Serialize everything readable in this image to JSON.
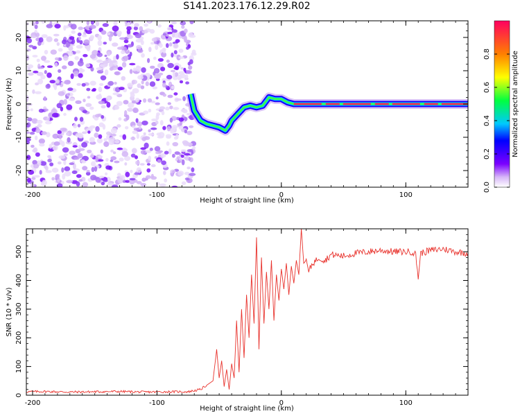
{
  "title": "S141.2023.176.12.29.R02",
  "chart_data": [
    {
      "type": "heatmap",
      "title": "S141.2023.176.12.29.R02",
      "xlabel": "Height of straight line (km)",
      "ylabel": "Frequency (Hz)",
      "xlim": [
        -205,
        150
      ],
      "ylim": [
        -25,
        25
      ],
      "xticks": [
        -200,
        -100,
        0,
        100
      ],
      "yticks": [
        -20,
        -10,
        0,
        10,
        20
      ],
      "colorbar": {
        "label": "Normalized spectral amplitude",
        "range": [
          0,
          1
        ],
        "ticks": [
          0.0,
          0.2,
          0.4,
          0.6,
          0.8
        ],
        "colormap": [
          "#e8d8f8",
          "#7b00ff",
          "#0000ff",
          "#00c8ff",
          "#00ff40",
          "#ffff00",
          "#ff8000",
          "#ff0040"
        ]
      },
      "noise_region_x": [
        -205,
        -70
      ],
      "tone_trace": {
        "x": [
          -73,
          -70,
          -65,
          -60,
          -55,
          -50,
          -45,
          -42,
          -40,
          -35,
          -30,
          -25,
          -20,
          -15,
          -10,
          -5,
          0,
          5,
          10,
          20,
          40,
          60,
          80,
          100,
          120,
          150
        ],
        "frequency": [
          3,
          -2,
          -5,
          -6,
          -6.5,
          -7,
          -8,
          -6.5,
          -5,
          -3,
          -1,
          -0.5,
          -1,
          -0.5,
          2,
          1.5,
          1.5,
          0.5,
          0,
          0,
          0,
          0,
          0,
          0,
          0,
          0
        ]
      },
      "grid": false
    },
    {
      "type": "line",
      "xlabel": "Height of straight line (km)",
      "ylabel": "SNR (10 * v/v)",
      "xlim": [
        -205,
        150
      ],
      "ylim": [
        0,
        580
      ],
      "xticks": [
        -200,
        -100,
        0,
        100
      ],
      "yticks": [
        0,
        100,
        200,
        300,
        400,
        500
      ],
      "color": "#e8302a",
      "series": [
        {
          "x": [
            -205,
            -190,
            -170,
            -150,
            -130,
            -110,
            -90,
            -75,
            -65,
            -55,
            -52,
            -50,
            -48,
            -46,
            -44,
            -42,
            -40,
            -38,
            -36,
            -34,
            -32,
            -30,
            -28,
            -26,
            -24,
            -22,
            -20,
            -18,
            -16,
            -14,
            -12,
            -10,
            -8,
            -6,
            -4,
            -2,
            0,
            2,
            4,
            6,
            8,
            10,
            12,
            14,
            16,
            18,
            20,
            22,
            25,
            28,
            30,
            35,
            40,
            50,
            60,
            70,
            80,
            90,
            100,
            105,
            108,
            110,
            112,
            120,
            130,
            140,
            150
          ],
          "y": [
            12,
            13,
            11,
            12,
            13,
            11,
            12,
            12,
            20,
            50,
            160,
            60,
            120,
            30,
            90,
            20,
            110,
            60,
            260,
            80,
            300,
            130,
            350,
            200,
            420,
            250,
            550,
            160,
            480,
            250,
            430,
            300,
            470,
            260,
            420,
            330,
            440,
            370,
            460,
            350,
            450,
            390,
            470,
            420,
            580,
            460,
            470,
            430,
            460,
            470,
            480,
            470,
            490,
            485,
            495,
            500,
            505,
            500,
            500,
            500,
            490,
            410,
            495,
            505,
            510,
            500,
            495
          ]
        }
      ],
      "grid": false
    }
  ]
}
